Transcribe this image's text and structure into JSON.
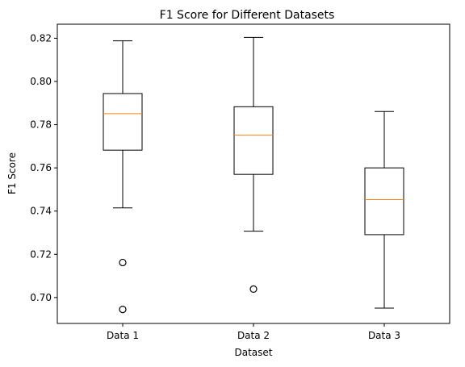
{
  "chart_data": {
    "type": "box",
    "title": "F1 Score for Different Datasets",
    "xlabel": "Dataset",
    "ylabel": "F1 Score",
    "ylim": [
      0.688,
      0.8265
    ],
    "yticks": [
      0.7,
      0.72,
      0.74,
      0.76,
      0.78,
      0.8,
      0.82
    ],
    "ytick_labels": [
      "0.70",
      "0.72",
      "0.74",
      "0.76",
      "0.78",
      "0.80",
      "0.82"
    ],
    "categories": [
      "Data 1",
      "Data 2",
      "Data 3"
    ],
    "boxes": [
      {
        "label": "Data 1",
        "whisker_low": 0.7415,
        "q1": 0.7682,
        "median": 0.7851,
        "q3": 0.7944,
        "whisker_high": 0.8188,
        "outliers": [
          0.7162,
          0.6945
        ]
      },
      {
        "label": "Data 2",
        "whisker_low": 0.7307,
        "q1": 0.757,
        "median": 0.7751,
        "q3": 0.7883,
        "whisker_high": 0.8204,
        "outliers": [
          0.7039
        ]
      },
      {
        "label": "Data 3",
        "whisker_low": 0.6951,
        "q1": 0.7291,
        "median": 0.7453,
        "q3": 0.76,
        "whisker_high": 0.7861,
        "outliers": []
      }
    ],
    "colors": {
      "box": "#000000",
      "median": "#ff7f0e",
      "outlier": "#000000"
    },
    "grid": false
  }
}
